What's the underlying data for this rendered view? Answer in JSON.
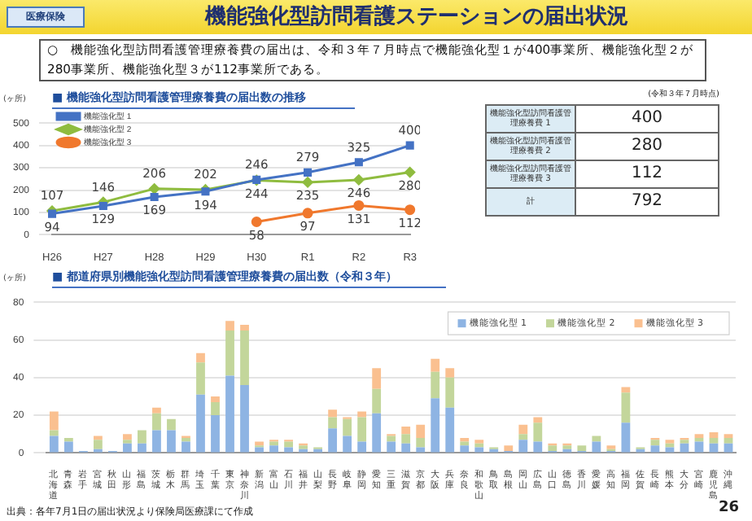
{
  "chart_data": [
    {
      "type": "other",
      "title": "機能強化型訪問看護ステーションの届出状況",
      "annotations": [
        "医療保険",
        "○　機能強化型訪問看護管理療養費の届出は、令和３年７月時点で機能強化型１が400事業所、機能強化型２が280事業所、機能強化型３が112事業所である。"
      ]
    },
    {
      "type": "line",
      "title": "■ 機能強化型訪問看護管理療養費の届出数の推移",
      "ylabel": "(ヶ所)",
      "categories": [
        "H26",
        "H27",
        "H28",
        "H29",
        "H30",
        "R1",
        "R2",
        "R3"
      ],
      "ylim": [
        0,
        500
      ],
      "yticks": [
        0,
        100,
        200,
        300,
        400,
        500
      ],
      "grid": "y",
      "legend": "top left",
      "data_labels": true,
      "line_style": "solid",
      "series": [
        {
          "name": "機能強化型 1",
          "color": "#4472c4",
          "marker": "square",
          "values": [
            94,
            129,
            169,
            194,
            246,
            279,
            325,
            400
          ]
        },
        {
          "name": "機能強化型 2",
          "color": "#8fbc3f",
          "marker": "diamond",
          "values": [
            107,
            146,
            206,
            202,
            244,
            235,
            246,
            280
          ]
        },
        {
          "name": "機能強化型 3",
          "color": "#f0782d",
          "marker": "circle",
          "values": [
            null,
            null,
            null,
            null,
            58,
            97,
            131,
            112
          ]
        }
      ]
    },
    {
      "type": "other",
      "annotations": [
        "(令和３年７月時点)"
      ],
      "categories": [
        "機能強化型訪問看護管理療養費 1",
        "機能強化型訪問看護管理療養費 2",
        "機能強化型訪問看護管理療養費 3",
        "計"
      ],
      "values": [
        400,
        280,
        112,
        792
      ],
      "data_labels": true
    },
    {
      "type": "bar",
      "stacked": true,
      "title": "■ 都道府県別機能強化型訪問看護管理療養費の届出数（令和３年）",
      "ylabel": "(ヶ所)",
      "ylim": [
        0,
        80
      ],
      "yticks": [
        0,
        20,
        40,
        60,
        80
      ],
      "grid": "y",
      "legend": "top right",
      "annotations": [
        "出典：各年7月1日の届出状況より保険局医療課にて作成",
        "26"
      ],
      "categories": [
        "北海道",
        "青森",
        "岩手",
        "宮城",
        "秋田",
        "山形",
        "福島",
        "茨城",
        "栃木",
        "群馬",
        "埼玉",
        "千葉",
        "東京",
        "神奈川",
        "新潟",
        "富山",
        "石川",
        "福井",
        "山梨",
        "長野",
        "岐阜",
        "静岡",
        "愛知",
        "三重",
        "滋賀",
        "京都",
        "大阪",
        "兵庫",
        "奈良",
        "和歌山",
        "鳥取",
        "島根",
        "岡山",
        "広島",
        "山口",
        "徳島",
        "香川",
        "愛媛",
        "高知",
        "福岡",
        "佐賀",
        "長崎",
        "熊本",
        "大分",
        "宮崎",
        "鹿児島",
        "沖縄"
      ],
      "series": [
        {
          "name": "機能強化型 1",
          "color": "#8eb4e3",
          "values": [
            9,
            6,
            1,
            2,
            1,
            5,
            5,
            12,
            12,
            6,
            31,
            20,
            41,
            36,
            3,
            4,
            3,
            2,
            2,
            13,
            9,
            6,
            21,
            6,
            5,
            3,
            29,
            24,
            4,
            3,
            2,
            1,
            7,
            6,
            1,
            2,
            1,
            6,
            1,
            16,
            2,
            4,
            3,
            5,
            6,
            5,
            5
          ]
        },
        {
          "name": "機能強化型 2",
          "color": "#c3d69b",
          "values": [
            3,
            2,
            0,
            5,
            0,
            2,
            7,
            9,
            6,
            2,
            17,
            7,
            24,
            29,
            1,
            2,
            3,
            2,
            1,
            6,
            9,
            13,
            13,
            3,
            5,
            5,
            14,
            16,
            2,
            2,
            1,
            0,
            3,
            10,
            3,
            2,
            3,
            3,
            1,
            16,
            1,
            3,
            2,
            2,
            2,
            3,
            3
          ]
        },
        {
          "name": "機能強化型 3",
          "color": "#fac090",
          "values": [
            10,
            0,
            0,
            2,
            0,
            3,
            0,
            3,
            0,
            1,
            5,
            3,
            5,
            3,
            2,
            1,
            1,
            1,
            0,
            4,
            1,
            3,
            11,
            1,
            4,
            7,
            7,
            5,
            2,
            2,
            0,
            3,
            5,
            3,
            1,
            1,
            0,
            0,
            2,
            3,
            0,
            1,
            2,
            1,
            2,
            3,
            2
          ]
        }
      ]
    }
  ]
}
